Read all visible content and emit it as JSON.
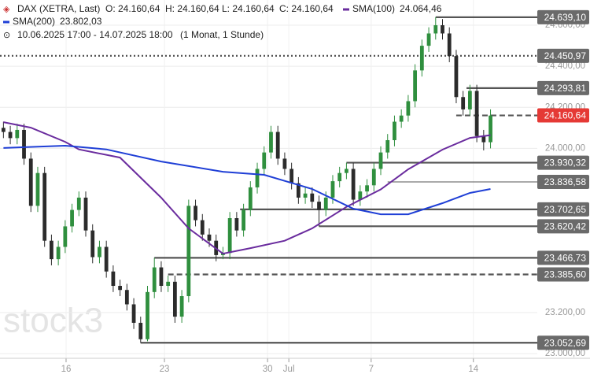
{
  "header": {
    "instrument": "DAX (XETRA, Last)",
    "open": "O: 24.160,64",
    "high": "H: 24.160,64",
    "low": "L: 24.160,64",
    "close": "C: 24.160,64",
    "range": "10.06.2025 17:00 - 14.07.2025 18:00",
    "interval": "(1 Monat, 1 Stunde)",
    "watermark": "stock3"
  },
  "chart_data": {
    "type": "candlestick",
    "xlim": [
      -0.5,
      85.5
    ],
    "ylim": [
      22977,
      24723
    ],
    "xticks": [
      {
        "value": 9.13,
        "label": "16"
      },
      {
        "value": 23.47,
        "label": "23"
      },
      {
        "value": 38.5,
        "label": "30"
      },
      {
        "value": 41.6,
        "label": "Jul"
      },
      {
        "value": 53.6,
        "label": "7"
      },
      {
        "value": 68.5,
        "label": "14"
      }
    ],
    "yticks": [
      {
        "value": 23000,
        "label": "23.000,00"
      },
      {
        "value": 23200,
        "label": "23.200,00"
      },
      {
        "value": 24000,
        "label": "24.000,00"
      },
      {
        "value": 24200,
        "label": "24.200,00"
      },
      {
        "value": 24400,
        "label": "24.400,00"
      },
      {
        "value": 24600,
        "label": "24.600,00"
      }
    ],
    "grid": true,
    "up_color": "#2f8f3e",
    "down_color": "#2b2b2b",
    "open": [
      24100,
      24080,
      24050,
      24090,
      23950,
      23720,
      23880,
      23550,
      23460,
      23520,
      23620,
      23700,
      23760,
      23600,
      23470,
      23520,
      23400,
      23330,
      23310,
      23240,
      23150,
      23070,
      23300,
      23420,
      23330,
      23350,
      23180,
      23280,
      23720,
      23650,
      23580,
      23550,
      23480,
      23490,
      23660,
      23600,
      23700,
      23810,
      23900,
      23980,
      24080,
      23950,
      23900,
      23830,
      23760,
      23780,
      23740,
      23700,
      23760,
      23840,
      23880,
      23900,
      23750,
      23790,
      23820,
      23900,
      23980,
      24040,
      24130,
      24160,
      24230,
      24380,
      24500,
      24560,
      24600,
      24560,
      24450,
      24250,
      24190,
      24280,
      24060,
      24030
    ],
    "high": [
      24130,
      24110,
      24120,
      24120,
      23980,
      23910,
      23910,
      23580,
      23550,
      23650,
      23730,
      23790,
      23790,
      23630,
      23550,
      23550,
      23430,
      23360,
      23340,
      23270,
      23180,
      23330,
      23467,
      23450,
      23380,
      23380,
      23310,
      23750,
      23750,
      23680,
      23610,
      23580,
      23520,
      23690,
      23690,
      23730,
      23840,
      23930,
      24010,
      24110,
      24110,
      23980,
      23930,
      23860,
      23810,
      23810,
      23770,
      23790,
      23870,
      23910,
      23930,
      23930,
      23820,
      23850,
      23930,
      24010,
      24070,
      24160,
      24190,
      24260,
      24410,
      24530,
      24590,
      24639,
      24630,
      24590,
      24480,
      24280,
      24310,
      24310,
      24090,
      24190
    ],
    "low": [
      24050,
      24020,
      24020,
      23920,
      23690,
      23690,
      23520,
      23430,
      23430,
      23490,
      23590,
      23670,
      23570,
      23440,
      23440,
      23370,
      23300,
      23280,
      23210,
      23120,
      23052,
      23060,
      23270,
      23300,
      23300,
      23150,
      23150,
      23250,
      23620,
      23550,
      23520,
      23450,
      23460,
      23460,
      23570,
      23570,
      23670,
      23780,
      23870,
      23950,
      23920,
      23870,
      23800,
      23730,
      23730,
      23710,
      23620,
      23670,
      23730,
      23810,
      23850,
      23720,
      23720,
      23760,
      23790,
      23870,
      23950,
      24010,
      24100,
      24130,
      24200,
      24350,
      24470,
      24530,
      24530,
      24420,
      24220,
      24160,
      24160,
      24030,
      23990,
      24000
    ],
    "close": [
      24080,
      24050,
      24090,
      23950,
      23720,
      23880,
      23550,
      23460,
      23520,
      23620,
      23700,
      23760,
      23600,
      23470,
      23520,
      23400,
      23330,
      23310,
      23240,
      23150,
      23070,
      23300,
      23420,
      23330,
      23350,
      23180,
      23280,
      23720,
      23650,
      23580,
      23550,
      23480,
      23490,
      23660,
      23600,
      23700,
      23810,
      23900,
      23980,
      24080,
      23950,
      23900,
      23830,
      23760,
      23780,
      23740,
      23700,
      23760,
      23840,
      23880,
      23900,
      23750,
      23790,
      23820,
      23900,
      23980,
      24040,
      24130,
      24160,
      24230,
      24380,
      24500,
      24560,
      24600,
      24560,
      24450,
      24250,
      24190,
      24280,
      24060,
      24030,
      24160
    ],
    "series": [
      {
        "name": "SMA(100)",
        "color": "#6a2c9e",
        "last_label": "24.064,46",
        "x": [
          0,
          4,
          9,
          11,
          17,
          23,
          27,
          32,
          36,
          41,
          45,
          50,
          55,
          59,
          64,
          68,
          71
        ],
        "values": [
          24128,
          24101,
          24032,
          23995,
          23955,
          23760,
          23610,
          23487,
          23514,
          23550,
          23610,
          23715,
          23800,
          23898,
          23994,
          24051,
          24064.46
        ]
      },
      {
        "name": "SMA(200)",
        "color": "#1f3fd6",
        "last_label": "23.802,03",
        "x": [
          0,
          9,
          15,
          23,
          32,
          38,
          45,
          51,
          55,
          59,
          64,
          68,
          71
        ],
        "values": [
          24002,
          24013,
          23995,
          23936,
          23886,
          23871,
          23802,
          23706,
          23679,
          23679,
          23733,
          23783,
          23802.03
        ]
      }
    ],
    "levels": [
      {
        "value": 24639.1,
        "label": "24.639,10",
        "style": "solid",
        "from": 63
      },
      {
        "value": 24450.97,
        "label": "24.450,97",
        "style": "dotted"
      },
      {
        "value": 24293.81,
        "label": "24.293,81",
        "style": "solid",
        "from": 67.5
      },
      {
        "value": 24160.64,
        "label": "24.160,64",
        "style": "dashed",
        "from": 66,
        "color": "#e53935"
      },
      {
        "value": 23930.32,
        "label": "23.930,32",
        "style": "solid",
        "from": 50
      },
      {
        "value": 23836.58,
        "label": "23.836,58",
        "style": "thin",
        "from": 56
      },
      {
        "value": 23702.65,
        "label": "23.702,65",
        "style": "solid",
        "from": 34.5
      },
      {
        "value": 23620.42,
        "label": "23.620,42",
        "style": "solid",
        "from": 46
      },
      {
        "value": 23466.73,
        "label": "23.466,73",
        "style": "solid",
        "from": 22
      },
      {
        "value": 23385.6,
        "label": "23.385,60",
        "style": "dashed",
        "from": 24
      },
      {
        "value": 23052.69,
        "label": "23.052,69",
        "style": "solid",
        "from": 20
      }
    ]
  }
}
